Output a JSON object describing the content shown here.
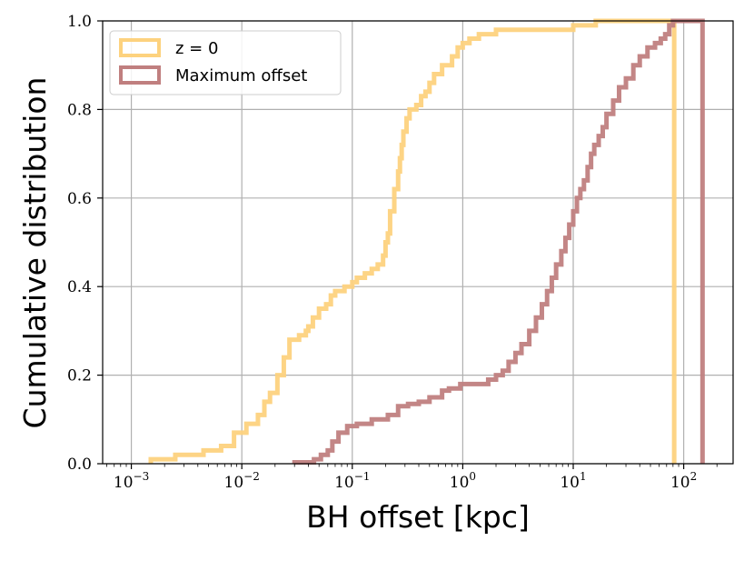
{
  "chart_data": {
    "type": "line",
    "subtype": "cumulative-step-histogram",
    "xlabel": "BH offset [kpc]",
    "ylabel": "Cumulative distribution",
    "xscale": "log",
    "xlim": [
      0.00055,
      280
    ],
    "ylim": [
      0.0,
      1.0
    ],
    "grid": true,
    "legend_position": "top-left",
    "x_tick_labels": [
      "10^-3",
      "10^-2",
      "10^-1",
      "10^0",
      "10^1",
      "10^2"
    ],
    "x_tick_values": [
      0.001,
      0.01,
      0.1,
      1,
      10,
      100
    ],
    "y_tick_labels": [
      "0.0",
      "0.2",
      "0.4",
      "0.6",
      "0.8",
      "1.0"
    ],
    "y_tick_values": [
      0.0,
      0.2,
      0.4,
      0.6,
      0.8,
      1.0
    ],
    "series": [
      {
        "name": "z = 0",
        "color": "#fdd27e",
        "points": [
          [
            0.0015,
            0.0
          ],
          [
            0.0015,
            0.01
          ],
          [
            0.0025,
            0.01
          ],
          [
            0.0025,
            0.02
          ],
          [
            0.0045,
            0.02
          ],
          [
            0.0045,
            0.03
          ],
          [
            0.0065,
            0.03
          ],
          [
            0.0065,
            0.04
          ],
          [
            0.0085,
            0.04
          ],
          [
            0.0085,
            0.07
          ],
          [
            0.011,
            0.07
          ],
          [
            0.011,
            0.09
          ],
          [
            0.014,
            0.09
          ],
          [
            0.014,
            0.11
          ],
          [
            0.016,
            0.11
          ],
          [
            0.016,
            0.14
          ],
          [
            0.018,
            0.14
          ],
          [
            0.018,
            0.16
          ],
          [
            0.021,
            0.16
          ],
          [
            0.021,
            0.2
          ],
          [
            0.024,
            0.2
          ],
          [
            0.024,
            0.24
          ],
          [
            0.027,
            0.24
          ],
          [
            0.027,
            0.28
          ],
          [
            0.033,
            0.28
          ],
          [
            0.033,
            0.29
          ],
          [
            0.038,
            0.29
          ],
          [
            0.038,
            0.3
          ],
          [
            0.04,
            0.3
          ],
          [
            0.04,
            0.31
          ],
          [
            0.044,
            0.31
          ],
          [
            0.044,
            0.33
          ],
          [
            0.05,
            0.33
          ],
          [
            0.05,
            0.35
          ],
          [
            0.058,
            0.35
          ],
          [
            0.058,
            0.36
          ],
          [
            0.064,
            0.36
          ],
          [
            0.064,
            0.38
          ],
          [
            0.07,
            0.38
          ],
          [
            0.07,
            0.39
          ],
          [
            0.085,
            0.39
          ],
          [
            0.085,
            0.4
          ],
          [
            0.1,
            0.4
          ],
          [
            0.1,
            0.41
          ],
          [
            0.11,
            0.41
          ],
          [
            0.11,
            0.42
          ],
          [
            0.13,
            0.42
          ],
          [
            0.13,
            0.43
          ],
          [
            0.15,
            0.43
          ],
          [
            0.15,
            0.44
          ],
          [
            0.17,
            0.44
          ],
          [
            0.17,
            0.45
          ],
          [
            0.19,
            0.45
          ],
          [
            0.19,
            0.47
          ],
          [
            0.2,
            0.47
          ],
          [
            0.2,
            0.5
          ],
          [
            0.21,
            0.5
          ],
          [
            0.21,
            0.52
          ],
          [
            0.22,
            0.52
          ],
          [
            0.22,
            0.57
          ],
          [
            0.24,
            0.57
          ],
          [
            0.24,
            0.62
          ],
          [
            0.26,
            0.62
          ],
          [
            0.26,
            0.66
          ],
          [
            0.27,
            0.66
          ],
          [
            0.27,
            0.69
          ],
          [
            0.28,
            0.69
          ],
          [
            0.28,
            0.72
          ],
          [
            0.29,
            0.72
          ],
          [
            0.29,
            0.75
          ],
          [
            0.31,
            0.75
          ],
          [
            0.31,
            0.78
          ],
          [
            0.33,
            0.78
          ],
          [
            0.33,
            0.8
          ],
          [
            0.38,
            0.8
          ],
          [
            0.38,
            0.81
          ],
          [
            0.42,
            0.81
          ],
          [
            0.42,
            0.83
          ],
          [
            0.46,
            0.83
          ],
          [
            0.46,
            0.84
          ],
          [
            0.5,
            0.84
          ],
          [
            0.5,
            0.86
          ],
          [
            0.55,
            0.86
          ],
          [
            0.55,
            0.88
          ],
          [
            0.65,
            0.88
          ],
          [
            0.65,
            0.9
          ],
          [
            0.8,
            0.9
          ],
          [
            0.8,
            0.92
          ],
          [
            0.9,
            0.92
          ],
          [
            0.9,
            0.94
          ],
          [
            1.0,
            0.94
          ],
          [
            1.0,
            0.95
          ],
          [
            1.15,
            0.95
          ],
          [
            1.15,
            0.96
          ],
          [
            1.4,
            0.96
          ],
          [
            1.4,
            0.97
          ],
          [
            2.0,
            0.97
          ],
          [
            2.0,
            0.98
          ],
          [
            10.0,
            0.98
          ],
          [
            10.0,
            0.99
          ],
          [
            16.0,
            0.99
          ],
          [
            16.0,
            1.0
          ],
          [
            82.0,
            1.0
          ],
          [
            82.0,
            0.0
          ]
        ]
      },
      {
        "name": "Maximum offset",
        "color": "#c07f7f",
        "points": [
          [
            0.03,
            0.0
          ],
          [
            0.03,
            0.003
          ],
          [
            0.045,
            0.003
          ],
          [
            0.045,
            0.01
          ],
          [
            0.052,
            0.01
          ],
          [
            0.052,
            0.02
          ],
          [
            0.06,
            0.02
          ],
          [
            0.06,
            0.03
          ],
          [
            0.066,
            0.03
          ],
          [
            0.066,
            0.05
          ],
          [
            0.075,
            0.05
          ],
          [
            0.075,
            0.07
          ],
          [
            0.09,
            0.07
          ],
          [
            0.09,
            0.085
          ],
          [
            0.11,
            0.085
          ],
          [
            0.11,
            0.09
          ],
          [
            0.15,
            0.09
          ],
          [
            0.15,
            0.1
          ],
          [
            0.21,
            0.1
          ],
          [
            0.21,
            0.11
          ],
          [
            0.26,
            0.11
          ],
          [
            0.26,
            0.13
          ],
          [
            0.32,
            0.13
          ],
          [
            0.32,
            0.135
          ],
          [
            0.4,
            0.135
          ],
          [
            0.4,
            0.14
          ],
          [
            0.5,
            0.14
          ],
          [
            0.5,
            0.15
          ],
          [
            0.65,
            0.15
          ],
          [
            0.65,
            0.165
          ],
          [
            0.75,
            0.165
          ],
          [
            0.75,
            0.17
          ],
          [
            0.95,
            0.17
          ],
          [
            0.95,
            0.18
          ],
          [
            1.7,
            0.18
          ],
          [
            1.7,
            0.19
          ],
          [
            2.0,
            0.19
          ],
          [
            2.0,
            0.2
          ],
          [
            2.3,
            0.2
          ],
          [
            2.3,
            0.21
          ],
          [
            2.6,
            0.21
          ],
          [
            2.6,
            0.23
          ],
          [
            3.0,
            0.23
          ],
          [
            3.0,
            0.25
          ],
          [
            3.4,
            0.25
          ],
          [
            3.4,
            0.27
          ],
          [
            4.0,
            0.27
          ],
          [
            4.0,
            0.3
          ],
          [
            4.6,
            0.3
          ],
          [
            4.6,
            0.33
          ],
          [
            5.2,
            0.33
          ],
          [
            5.2,
            0.36
          ],
          [
            5.8,
            0.36
          ],
          [
            5.8,
            0.39
          ],
          [
            6.4,
            0.39
          ],
          [
            6.4,
            0.42
          ],
          [
            7.0,
            0.42
          ],
          [
            7.0,
            0.45
          ],
          [
            7.8,
            0.45
          ],
          [
            7.8,
            0.48
          ],
          [
            8.5,
            0.48
          ],
          [
            8.5,
            0.51
          ],
          [
            9.2,
            0.51
          ],
          [
            9.2,
            0.54
          ],
          [
            10.0,
            0.54
          ],
          [
            10.0,
            0.57
          ],
          [
            10.8,
            0.57
          ],
          [
            10.8,
            0.6
          ],
          [
            11.6,
            0.6
          ],
          [
            11.6,
            0.62
          ],
          [
            12.5,
            0.62
          ],
          [
            12.5,
            0.64
          ],
          [
            13.5,
            0.64
          ],
          [
            13.5,
            0.67
          ],
          [
            14.5,
            0.67
          ],
          [
            14.5,
            0.7
          ],
          [
            15.5,
            0.7
          ],
          [
            15.5,
            0.72
          ],
          [
            17.0,
            0.72
          ],
          [
            17.0,
            0.74
          ],
          [
            18.5,
            0.74
          ],
          [
            18.5,
            0.76
          ],
          [
            20.0,
            0.76
          ],
          [
            20.0,
            0.79
          ],
          [
            23.0,
            0.79
          ],
          [
            23.0,
            0.82
          ],
          [
            26.0,
            0.82
          ],
          [
            26.0,
            0.85
          ],
          [
            30.0,
            0.85
          ],
          [
            30.0,
            0.87
          ],
          [
            35.0,
            0.87
          ],
          [
            35.0,
            0.9
          ],
          [
            40.0,
            0.9
          ],
          [
            40.0,
            0.92
          ],
          [
            47.0,
            0.92
          ],
          [
            47.0,
            0.94
          ],
          [
            55.0,
            0.94
          ],
          [
            55.0,
            0.95
          ],
          [
            62.0,
            0.95
          ],
          [
            62.0,
            0.96
          ],
          [
            68.0,
            0.96
          ],
          [
            68.0,
            0.97
          ],
          [
            74.0,
            0.97
          ],
          [
            74.0,
            0.99
          ],
          [
            80.0,
            0.99
          ],
          [
            80.0,
            1.0
          ],
          [
            148.0,
            1.0
          ],
          [
            148.0,
            0.0
          ]
        ]
      }
    ]
  }
}
